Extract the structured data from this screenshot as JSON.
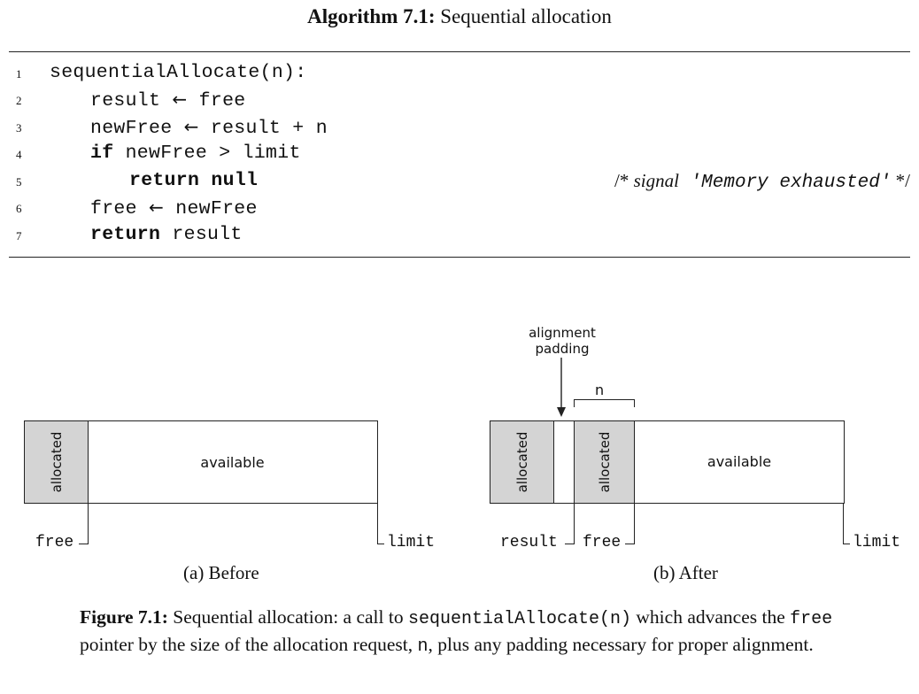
{
  "algorithm": {
    "label": "Algorithm 7.1:",
    "title": "Sequential allocation",
    "lines": [
      {
        "num": "1",
        "code": "sequentialAllocate(n):"
      },
      {
        "num": "2",
        "code_a": "result ",
        "arrow": "←",
        "code_b": " free"
      },
      {
        "num": "3",
        "code_a": "newFree ",
        "arrow": "←",
        "code_b": " result + n"
      },
      {
        "num": "4",
        "kw": "if",
        "code": " newFree > limit"
      },
      {
        "num": "5",
        "kw": "return null",
        "comment_open": "/* ",
        "comment_it": "signal",
        "comment_mono": " 'Memory exhausted'",
        "comment_close": " */"
      },
      {
        "num": "6",
        "code_a": "free ",
        "arrow": "←",
        "code_b": " newFree"
      },
      {
        "num": "7",
        "kw": "return",
        "code": " result"
      }
    ]
  },
  "figure": {
    "before": {
      "allocated": "allocated",
      "available": "available",
      "free": "free",
      "limit": "limit",
      "subcaption": "(a) Before"
    },
    "after": {
      "alignment_padding": [
        "alignment",
        "padding"
      ],
      "n": "n",
      "allocated_1": "allocated",
      "allocated_2": "allocated",
      "available": "available",
      "result": "result",
      "free": "free",
      "limit": "limit",
      "subcaption": "(b) After"
    },
    "caption": {
      "label": "Figure 7.1:",
      "text_1": " Sequential allocation: a call to ",
      "code_1": "sequentialAllocate(n)",
      "text_2": " which advances the ",
      "code_2": "free",
      "text_3": " pointer by the size of the allocation request, ",
      "code_3": "n",
      "text_4": ", plus any padding necessary for proper alignment."
    }
  }
}
